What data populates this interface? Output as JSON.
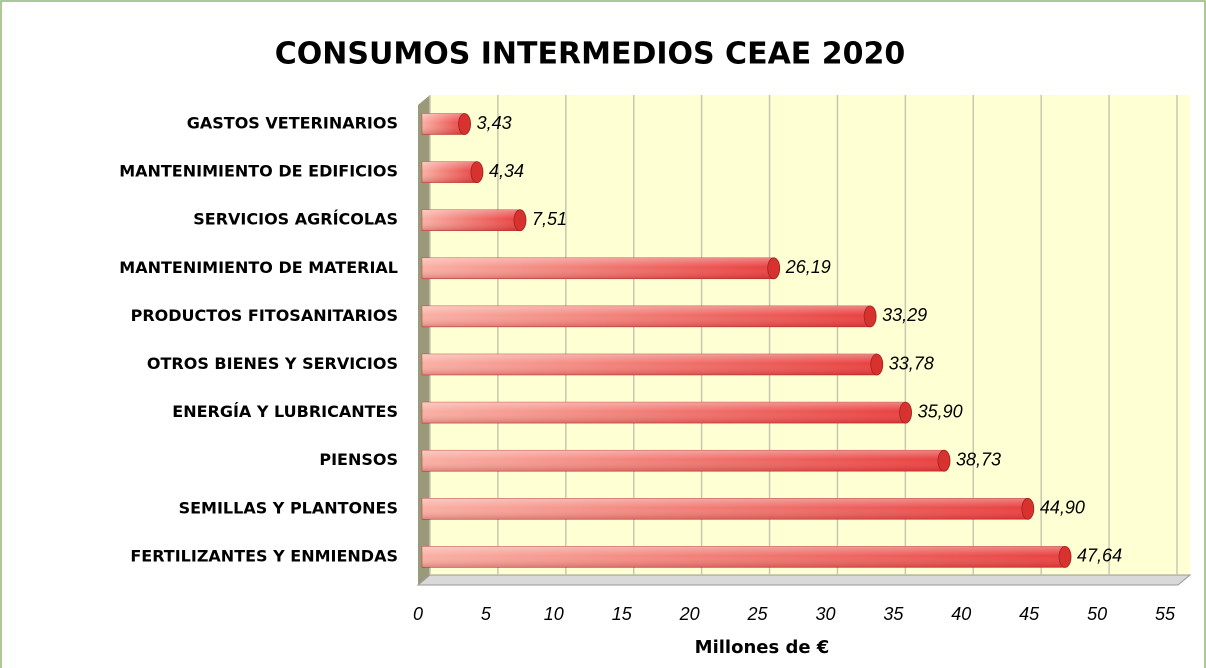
{
  "chart_data": {
    "type": "bar",
    "orientation": "horizontal",
    "title": "CONSUMOS INTERMEDIOS CEAE 2020",
    "x_label": "Millones de €",
    "categories": [
      "GASTOS VETERINARIOS",
      "MANTENIMIENTO DE EDIFICIOS",
      "SERVICIOS AGRÍCOLAS",
      "MANTENIMIENTO DE MATERIAL",
      "PRODUCTOS FITOSANITARIOS",
      "OTROS BIENES Y SERVICIOS",
      "ENERGÍA Y LUBRICANTES",
      "PIENSOS",
      "SEMILLAS Y PLANTONES",
      "FERTILIZANTES Y ENMIENDAS"
    ],
    "values": [
      3.43,
      4.34,
      7.51,
      26.19,
      33.29,
      33.78,
      35.9,
      38.73,
      44.9,
      47.64
    ],
    "value_labels": [
      "3,43",
      "4,34",
      "7,51",
      "26,19",
      "33,29",
      "33,78",
      "35,90",
      "38,73",
      "44,90",
      "47,64"
    ],
    "color": "#e8403f",
    "xlim": [
      0,
      55
    ],
    "xticks": [
      0,
      5,
      10,
      15,
      20,
      25,
      30,
      35,
      40,
      45,
      50,
      55
    ],
    "grid": true
  }
}
